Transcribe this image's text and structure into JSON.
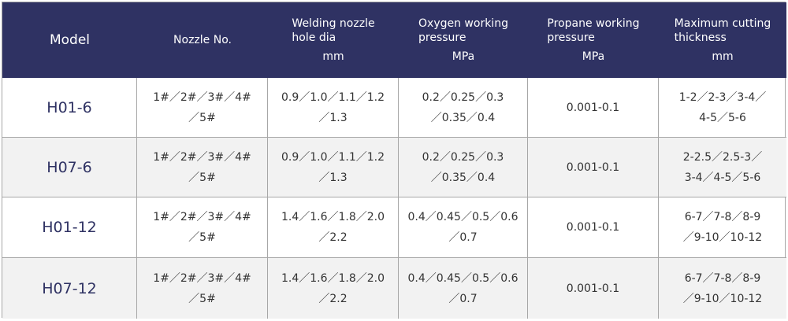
{
  "header": {
    "model": "Model",
    "nozzle_no": "Nozzle No.",
    "hole_dia": {
      "line1": "Welding nozzle",
      "line2": "hole dia",
      "unit": "mm"
    },
    "oxygen": {
      "line1": "Oxygen working",
      "line2": "pressure",
      "unit": "MPa"
    },
    "propane": {
      "line1": "Propane working",
      "line2": "pressure",
      "unit": "MPa"
    },
    "thickness": {
      "line1": "Maximum cutting",
      "line2": "thickness",
      "unit": "mm"
    }
  },
  "rows": [
    {
      "model": "H01-6",
      "nozzle": [
        "1#／2#／3#／4#",
        "／5#"
      ],
      "hole_dia": [
        "0.9／1.0／1.1／1.2",
        "／1.3"
      ],
      "oxygen": [
        "0.2／0.25／0.3",
        "／0.35／0.4"
      ],
      "propane": "0.001-0.1",
      "thickness": [
        "1-2／2-3／3-4／",
        "4-5／5-6"
      ]
    },
    {
      "model": "H07-6",
      "nozzle": [
        "1#／2#／3#／4#",
        "／5#"
      ],
      "hole_dia": [
        "0.9／1.0／1.1／1.2",
        "／1.3"
      ],
      "oxygen": [
        "0.2／0.25／0.3",
        "／0.35／0.4"
      ],
      "propane": "0.001-0.1",
      "thickness": [
        "2-2.5／2.5-3／",
        "3-4／4-5／5-6"
      ]
    },
    {
      "model": "H01-12",
      "nozzle": [
        "1#／2#／3#／4#",
        "／5#"
      ],
      "hole_dia": [
        "1.4／1.6／1.8／2.0",
        "／2.2"
      ],
      "oxygen": [
        "0.4／0.45／0.5／0.6",
        "／0.7"
      ],
      "propane": "0.001-0.1",
      "thickness": [
        "6-7／7-8／8-9",
        "／9-10／10-12"
      ]
    },
    {
      "model": "H07-12",
      "nozzle": [
        "1#／2#／3#／4#",
        "／5#"
      ],
      "hole_dia": [
        "1.4／1.6／1.8／2.0",
        "／2.2"
      ],
      "oxygen": [
        "0.4／0.45／0.5／0.6",
        "／0.7"
      ],
      "propane": "0.001-0.1",
      "thickness": [
        "6-7／7-8／8-9",
        "／9-10／10-12"
      ]
    }
  ],
  "colors": {
    "header_bg": "#2f3263",
    "header_text": "#ffffff",
    "model_text": "#2f3263",
    "shaded_row": "#f2f2f2",
    "border": "#a7a7a7"
  }
}
